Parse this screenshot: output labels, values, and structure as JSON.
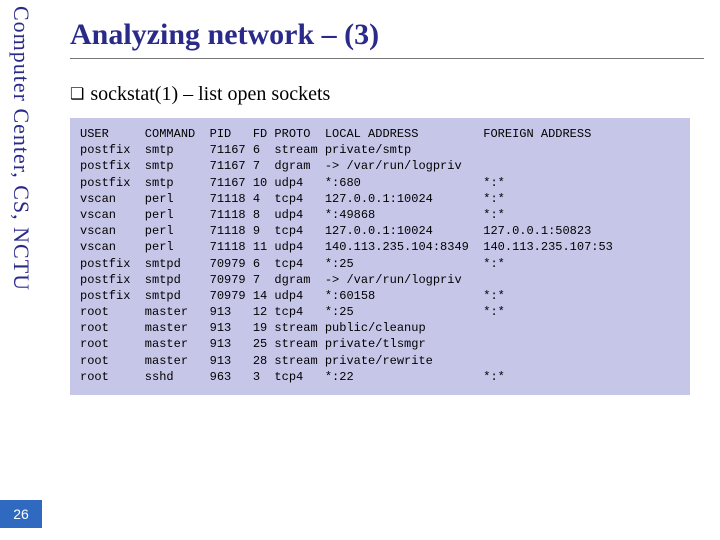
{
  "rail_label": "Computer Center, CS, NCTU",
  "page_number": "26",
  "title": "Analyzing network – (3)",
  "bullet_marker": "❑",
  "bullet_text": "sockstat(1) – list open sockets",
  "colors": {
    "title": "#2a2a8a",
    "rail_text": "#2a2a8a",
    "code_bg": "#c6c6e8",
    "page_bg": "#2f6ac0",
    "rule": "#777777"
  },
  "table": {
    "headers": [
      "USER",
      "COMMAND",
      "PID",
      "FD",
      "PROTO",
      "LOCAL ADDRESS",
      "FOREIGN ADDRESS"
    ],
    "col_widths_ch": [
      9,
      9,
      6,
      3,
      7,
      22,
      20
    ],
    "rows": [
      [
        "postfix",
        "smtp",
        "71167",
        "6",
        "stream",
        "private/smtp",
        ""
      ],
      [
        "postfix",
        "smtp",
        "71167",
        "7",
        "dgram",
        "-> /var/run/logpriv",
        ""
      ],
      [
        "postfix",
        "smtp",
        "71167",
        "10",
        "udp4",
        "*:680",
        "*:*"
      ],
      [
        "vscan",
        "perl",
        "71118",
        "4",
        "tcp4",
        "127.0.0.1:10024",
        "*:*"
      ],
      [
        "vscan",
        "perl",
        "71118",
        "8",
        "udp4",
        "*:49868",
        "*:*"
      ],
      [
        "vscan",
        "perl",
        "71118",
        "9",
        "tcp4",
        "127.0.0.1:10024",
        "127.0.0.1:50823"
      ],
      [
        "vscan",
        "perl",
        "71118",
        "11",
        "udp4",
        "140.113.235.104:8349",
        "140.113.235.107:53"
      ],
      [
        "postfix",
        "smtpd",
        "70979",
        "6",
        "tcp4",
        "*:25",
        "*:*"
      ],
      [
        "postfix",
        "smtpd",
        "70979",
        "7",
        "dgram",
        "-> /var/run/logpriv",
        ""
      ],
      [
        "postfix",
        "smtpd",
        "70979",
        "14",
        "udp4",
        "*:60158",
        "*:*"
      ],
      [
        "root",
        "master",
        "913",
        "12",
        "tcp4",
        "*:25",
        "*:*"
      ],
      [
        "root",
        "master",
        "913",
        "19",
        "stream",
        "public/cleanup",
        ""
      ],
      [
        "root",
        "master",
        "913",
        "25",
        "stream",
        "private/tlsmgr",
        ""
      ],
      [
        "root",
        "master",
        "913",
        "28",
        "stream",
        "private/rewrite",
        ""
      ],
      [
        "root",
        "sshd",
        "963",
        "3",
        "tcp4",
        "*:22",
        "*:*"
      ]
    ]
  }
}
